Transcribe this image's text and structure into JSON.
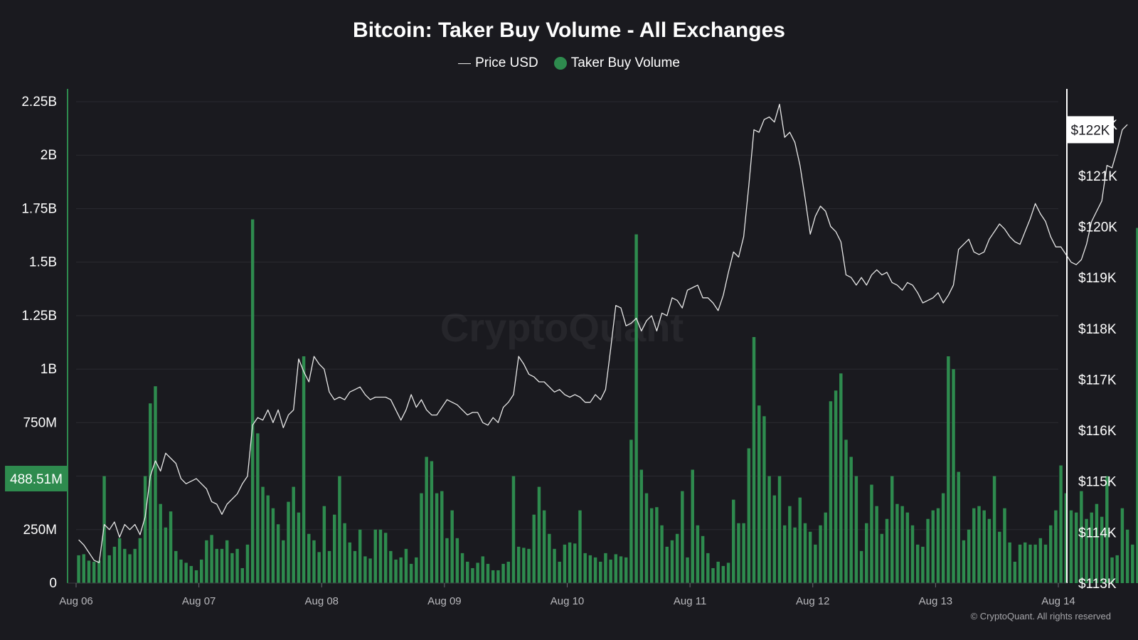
{
  "title": "Bitcoin: Taker Buy Volume - All Exchanges",
  "legend": {
    "price_label": "Price USD",
    "volume_label": "Taker Buy Volume"
  },
  "watermark": "CryptoQuant",
  "copyright": "© CryptoQuant. All rights reserved",
  "colors": {
    "background": "#1a1a1f",
    "volume": "#2e8b4e",
    "price": "#e8e8e8",
    "grid": "#2a2a30",
    "axis_left": "#2e8b4e",
    "axis_right": "#ffffff"
  },
  "chart_data": {
    "type": "bar",
    "title": "Bitcoin: Taker Buy Volume - All Exchanges",
    "grid": true,
    "legend_position": "top-center",
    "x_range": [
      "2025-08-06 00:00",
      "2025-08-14 00:00"
    ],
    "x_ticks": [
      "Aug 06",
      "Aug 07",
      "Aug 08",
      "Aug 09",
      "Aug 10",
      "Aug 11",
      "Aug 12",
      "Aug 13",
      "Aug 14"
    ],
    "y_left": {
      "ticks": [
        0,
        250000000,
        500000000,
        750000000,
        1000000000,
        1250000000,
        1500000000,
        1750000000,
        2000000000,
        2250000000
      ],
      "tick_labels": [
        "0",
        "250M",
        "",
        "750M",
        "1B",
        "1.25B",
        "1.5B",
        "1.75B",
        "2B",
        "2.25B"
      ],
      "range": [
        0,
        2250000000
      ],
      "current_label": "488.51M",
      "current_value": 488510000
    },
    "y_right": {
      "ticks": [
        113000,
        114000,
        115000,
        116000,
        117000,
        118000,
        119000,
        120000,
        121000,
        122000
      ],
      "tick_labels": [
        "$113K",
        "$114K",
        "$115K",
        "$116K",
        "$117K",
        "$118K",
        "$119K",
        "$120K",
        "$121K",
        "$122K"
      ],
      "range": [
        113000,
        122450
      ],
      "current_label": "$122K",
      "current_value": 121900
    },
    "series": [
      {
        "name": "Taker Buy Volume",
        "kind": "bar",
        "axis": "left",
        "interval_hours": 1,
        "start": "2025-08-06 00:00",
        "values": [
          130,
          135,
          105,
          100,
          105,
          500,
          130,
          170,
          210,
          160,
          135,
          160,
          210,
          500,
          840,
          920,
          370,
          260,
          335,
          150,
          110,
          95,
          80,
          60,
          110,
          200,
          225,
          160,
          160,
          200,
          140,
          160,
          70,
          180,
          1700,
          700,
          450,
          410,
          350,
          275,
          200,
          380,
          450,
          330,
          1060,
          230,
          200,
          145,
          360,
          150,
          320,
          500,
          280,
          190,
          150,
          250,
          125,
          115,
          250,
          250,
          235,
          150,
          110,
          120,
          160,
          90,
          120,
          420,
          590,
          570,
          420,
          430,
          210,
          340,
          210,
          140,
          100,
          70,
          95,
          125,
          90,
          60,
          60,
          90,
          100,
          500,
          170,
          165,
          160,
          320,
          450,
          340,
          230,
          160,
          100,
          180,
          190,
          185,
          340,
          140,
          130,
          120,
          100,
          140,
          110,
          135,
          125,
          120,
          670,
          1630,
          530,
          420,
          350,
          355,
          270,
          170,
          200,
          230,
          430,
          120,
          530,
          270,
          220,
          140,
          70,
          100,
          80,
          95,
          390,
          280,
          280,
          630,
          1150,
          830,
          780,
          500,
          410,
          500,
          270,
          360,
          260,
          400,
          280,
          240,
          180,
          270,
          330,
          850,
          900,
          980,
          670,
          590,
          500,
          150,
          280,
          460,
          360,
          230,
          300,
          500,
          370,
          360,
          330,
          270,
          180,
          170,
          300,
          340,
          350,
          420,
          1060,
          1000,
          520,
          200,
          250,
          350,
          360,
          340,
          300,
          500,
          240,
          350,
          190,
          100,
          180,
          190,
          180,
          180,
          210,
          180,
          270,
          340,
          550,
          420,
          340,
          330,
          430,
          300,
          330,
          370,
          310,
          500,
          120,
          130,
          350,
          250,
          180,
          1660,
          480
        ]
      },
      {
        "name": "Price USD",
        "kind": "line",
        "axis": "right",
        "interval_hours": 1,
        "start": "2025-08-06 00:00",
        "values": [
          113850,
          113750,
          113600,
          113450,
          113400,
          114150,
          114050,
          114200,
          113900,
          114150,
          114050,
          114150,
          113950,
          114300,
          115100,
          115400,
          115200,
          115550,
          115450,
          115350,
          115050,
          114950,
          115000,
          115050,
          114950,
          114850,
          114600,
          114550,
          114350,
          114550,
          114650,
          114750,
          114950,
          115100,
          116100,
          116250,
          116200,
          116400,
          116150,
          116400,
          116050,
          116300,
          116400,
          117400,
          117150,
          116950,
          117450,
          117300,
          117200,
          116750,
          116600,
          116650,
          116600,
          116750,
          116800,
          116850,
          116700,
          116600,
          116650,
          116650,
          116650,
          116600,
          116400,
          116200,
          116400,
          116700,
          116450,
          116600,
          116400,
          116300,
          116300,
          116450,
          116600,
          116550,
          116500,
          116400,
          116300,
          116350,
          116350,
          116150,
          116100,
          116250,
          116150,
          116450,
          116550,
          116700,
          117450,
          117300,
          117100,
          117050,
          116950,
          116950,
          116850,
          116750,
          116800,
          116700,
          116650,
          116700,
          116650,
          116550,
          116550,
          116700,
          116600,
          116800,
          117600,
          118450,
          118400,
          118050,
          118100,
          118200,
          117950,
          118150,
          118250,
          117950,
          118300,
          118250,
          118600,
          118550,
          118400,
          118750,
          118800,
          118850,
          118600,
          118600,
          118500,
          118350,
          118650,
          119100,
          119500,
          119400,
          119800,
          120800,
          121900,
          121850,
          122100,
          122150,
          122050,
          122400,
          121750,
          121850,
          121650,
          121200,
          120550,
          119850,
          120200,
          120400,
          120300,
          120000,
          119900,
          119700,
          119050,
          119000,
          118850,
          119000,
          118850,
          119050,
          119150,
          119050,
          119100,
          118900,
          118850,
          118750,
          118900,
          118850,
          118700,
          118500,
          118550,
          118600,
          118700,
          118500,
          118650,
          118850,
          119550,
          119650,
          119750,
          119500,
          119450,
          119500,
          119750,
          119900,
          120050,
          119950,
          119800,
          119700,
          119650,
          119900,
          120150,
          120450,
          120250,
          120100,
          119800,
          119600,
          119600,
          119450,
          119300,
          119250,
          119350,
          119650,
          120100,
          120300,
          120500,
          121200,
          121150,
          121500,
          121900,
          122000
        ]
      }
    ]
  }
}
